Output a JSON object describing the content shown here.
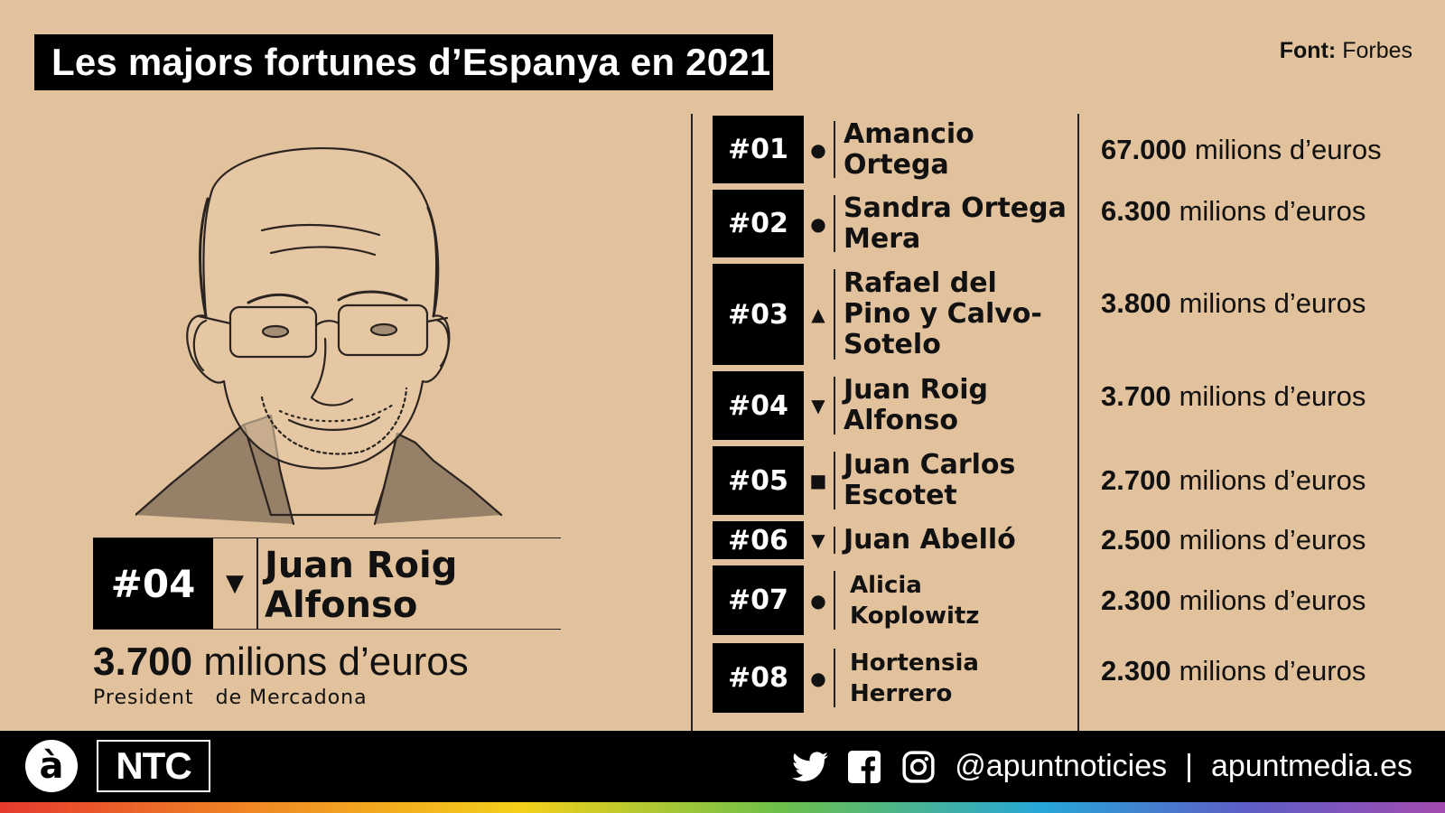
{
  "header": {
    "title": "Les majors fortunes d’Espanya en 2021",
    "source_label": "Font:",
    "source_value": "Forbes"
  },
  "featured": {
    "rank": "#04",
    "trend_symbol": "▼",
    "name_line1": "Juan Roig",
    "name_line2": "Alfonso",
    "value_number": "3.700",
    "value_unit": "milions d’euros",
    "role": "President   de Mercadona"
  },
  "ranking": [
    {
      "rank": "#01",
      "symbol": "●",
      "name_line1": "Amancio",
      "name_line2": "Ortega",
      "value_number": "67.000",
      "value_unit": "milions d’euros"
    },
    {
      "rank": "#02",
      "symbol": "●",
      "name_line1": "Sandra Ortega",
      "name_line2": "Mera",
      "value_number": "6.300",
      "value_unit": "milions d’euros"
    },
    {
      "rank": "#03",
      "symbol": "▲",
      "name_line1": "Rafael del",
      "name_line2": "Pino y Calvo-",
      "name_line3": "Sotelo",
      "value_number": "3.800",
      "value_unit": "milions d’euros"
    },
    {
      "rank": "#04",
      "symbol": "▼",
      "name_line1": "Juan Roig",
      "name_line2": "Alfonso",
      "value_number": "3.700",
      "value_unit": "milions d’euros"
    },
    {
      "rank": "#05",
      "symbol": "■",
      "name_line1": "Juan Carlos",
      "name_line2": "Escotet",
      "value_number": "2.700",
      "value_unit": "milions d’euros"
    },
    {
      "rank": "#06",
      "symbol": "▼",
      "name_line1": "Juan Abelló",
      "value_number": "2.500",
      "value_unit": "milions d’euros"
    },
    {
      "rank": "#07",
      "symbol": "●",
      "name_line1": "Alicia",
      "name_line2": "Koplowitz",
      "value_number": "2.300",
      "value_unit": "milions d’euros"
    },
    {
      "rank": "#08",
      "symbol": "●",
      "name_line1": "Hortensia",
      "name_line2": "Herrero",
      "value_number": "2.300",
      "value_unit": "milions d’euros"
    }
  ],
  "footer": {
    "logo_a": "à",
    "logo_ntc": "NTC",
    "handle": "@apuntnoticies",
    "divider": "|",
    "website": "apuntmedia.es",
    "icons": [
      "twitter-icon",
      "facebook-icon",
      "instagram-icon"
    ]
  },
  "colors": {
    "background": "#e2c29c",
    "black": "#000000",
    "white": "#ffffff"
  }
}
